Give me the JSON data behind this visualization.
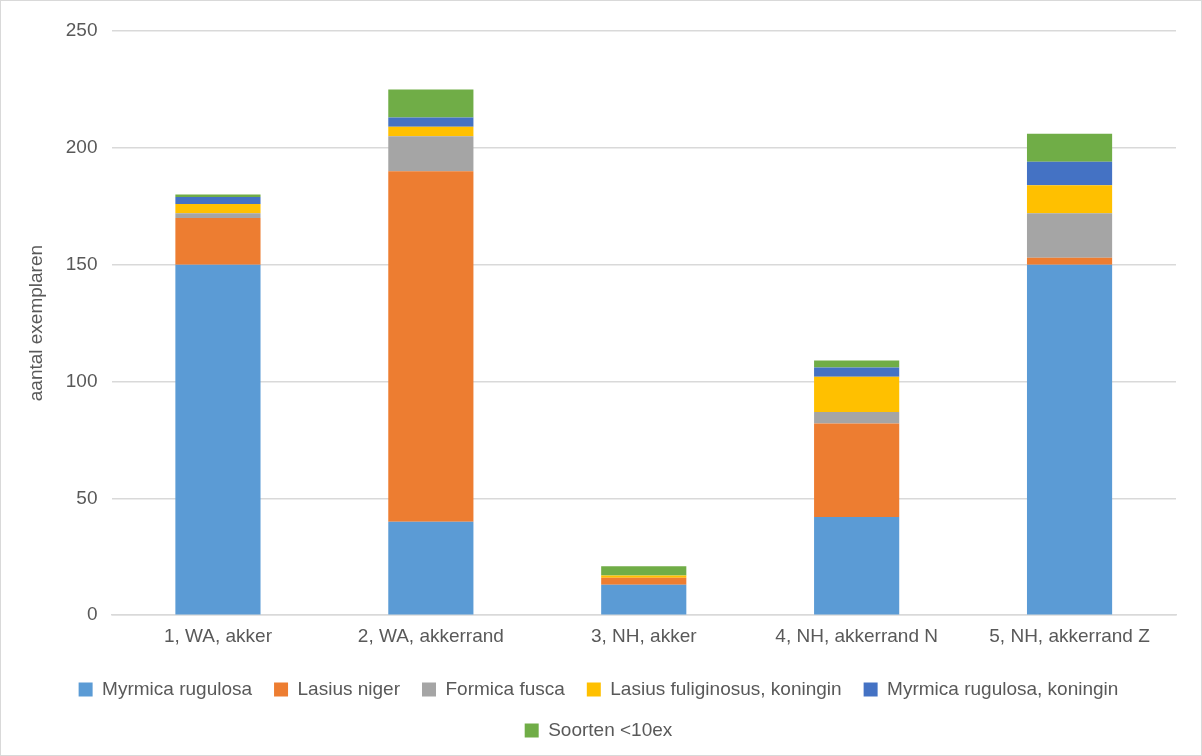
{
  "chart_data": {
    "type": "bar",
    "stacked": true,
    "ylabel": "aantal exemplaren",
    "categories": [
      "1, WA, akker",
      "2, WA, akkerrand",
      "3, NH, akker",
      "4, NH, akkerrand N",
      "5, NH, akkerrand Z"
    ],
    "series": [
      {
        "name": "Myrmica rugulosa",
        "color": "#5b9bd5",
        "values": [
          150,
          40,
          13,
          42,
          150
        ]
      },
      {
        "name": "Lasius niger",
        "color": "#ed7d31",
        "values": [
          20,
          150,
          3,
          40,
          3
        ]
      },
      {
        "name": "Formica fusca",
        "color": "#a5a5a5",
        "values": [
          2,
          15,
          0,
          5,
          19
        ]
      },
      {
        "name": "Lasius fuliginosus, koningin",
        "color": "#ffc000",
        "values": [
          4,
          4,
          1,
          15,
          12
        ]
      },
      {
        "name": "Myrmica rugulosa, koningin",
        "color": "#4472c4",
        "values": [
          3,
          4,
          0,
          4,
          10
        ]
      },
      {
        "name": "Soorten <10ex",
        "color": "#70ad47",
        "values": [
          1,
          12,
          4,
          3,
          12
        ]
      }
    ],
    "ylim": [
      0,
      250
    ],
    "yticks": [
      0,
      50,
      100,
      150,
      200,
      250
    ],
    "grid": "y",
    "legend": "bottom"
  }
}
